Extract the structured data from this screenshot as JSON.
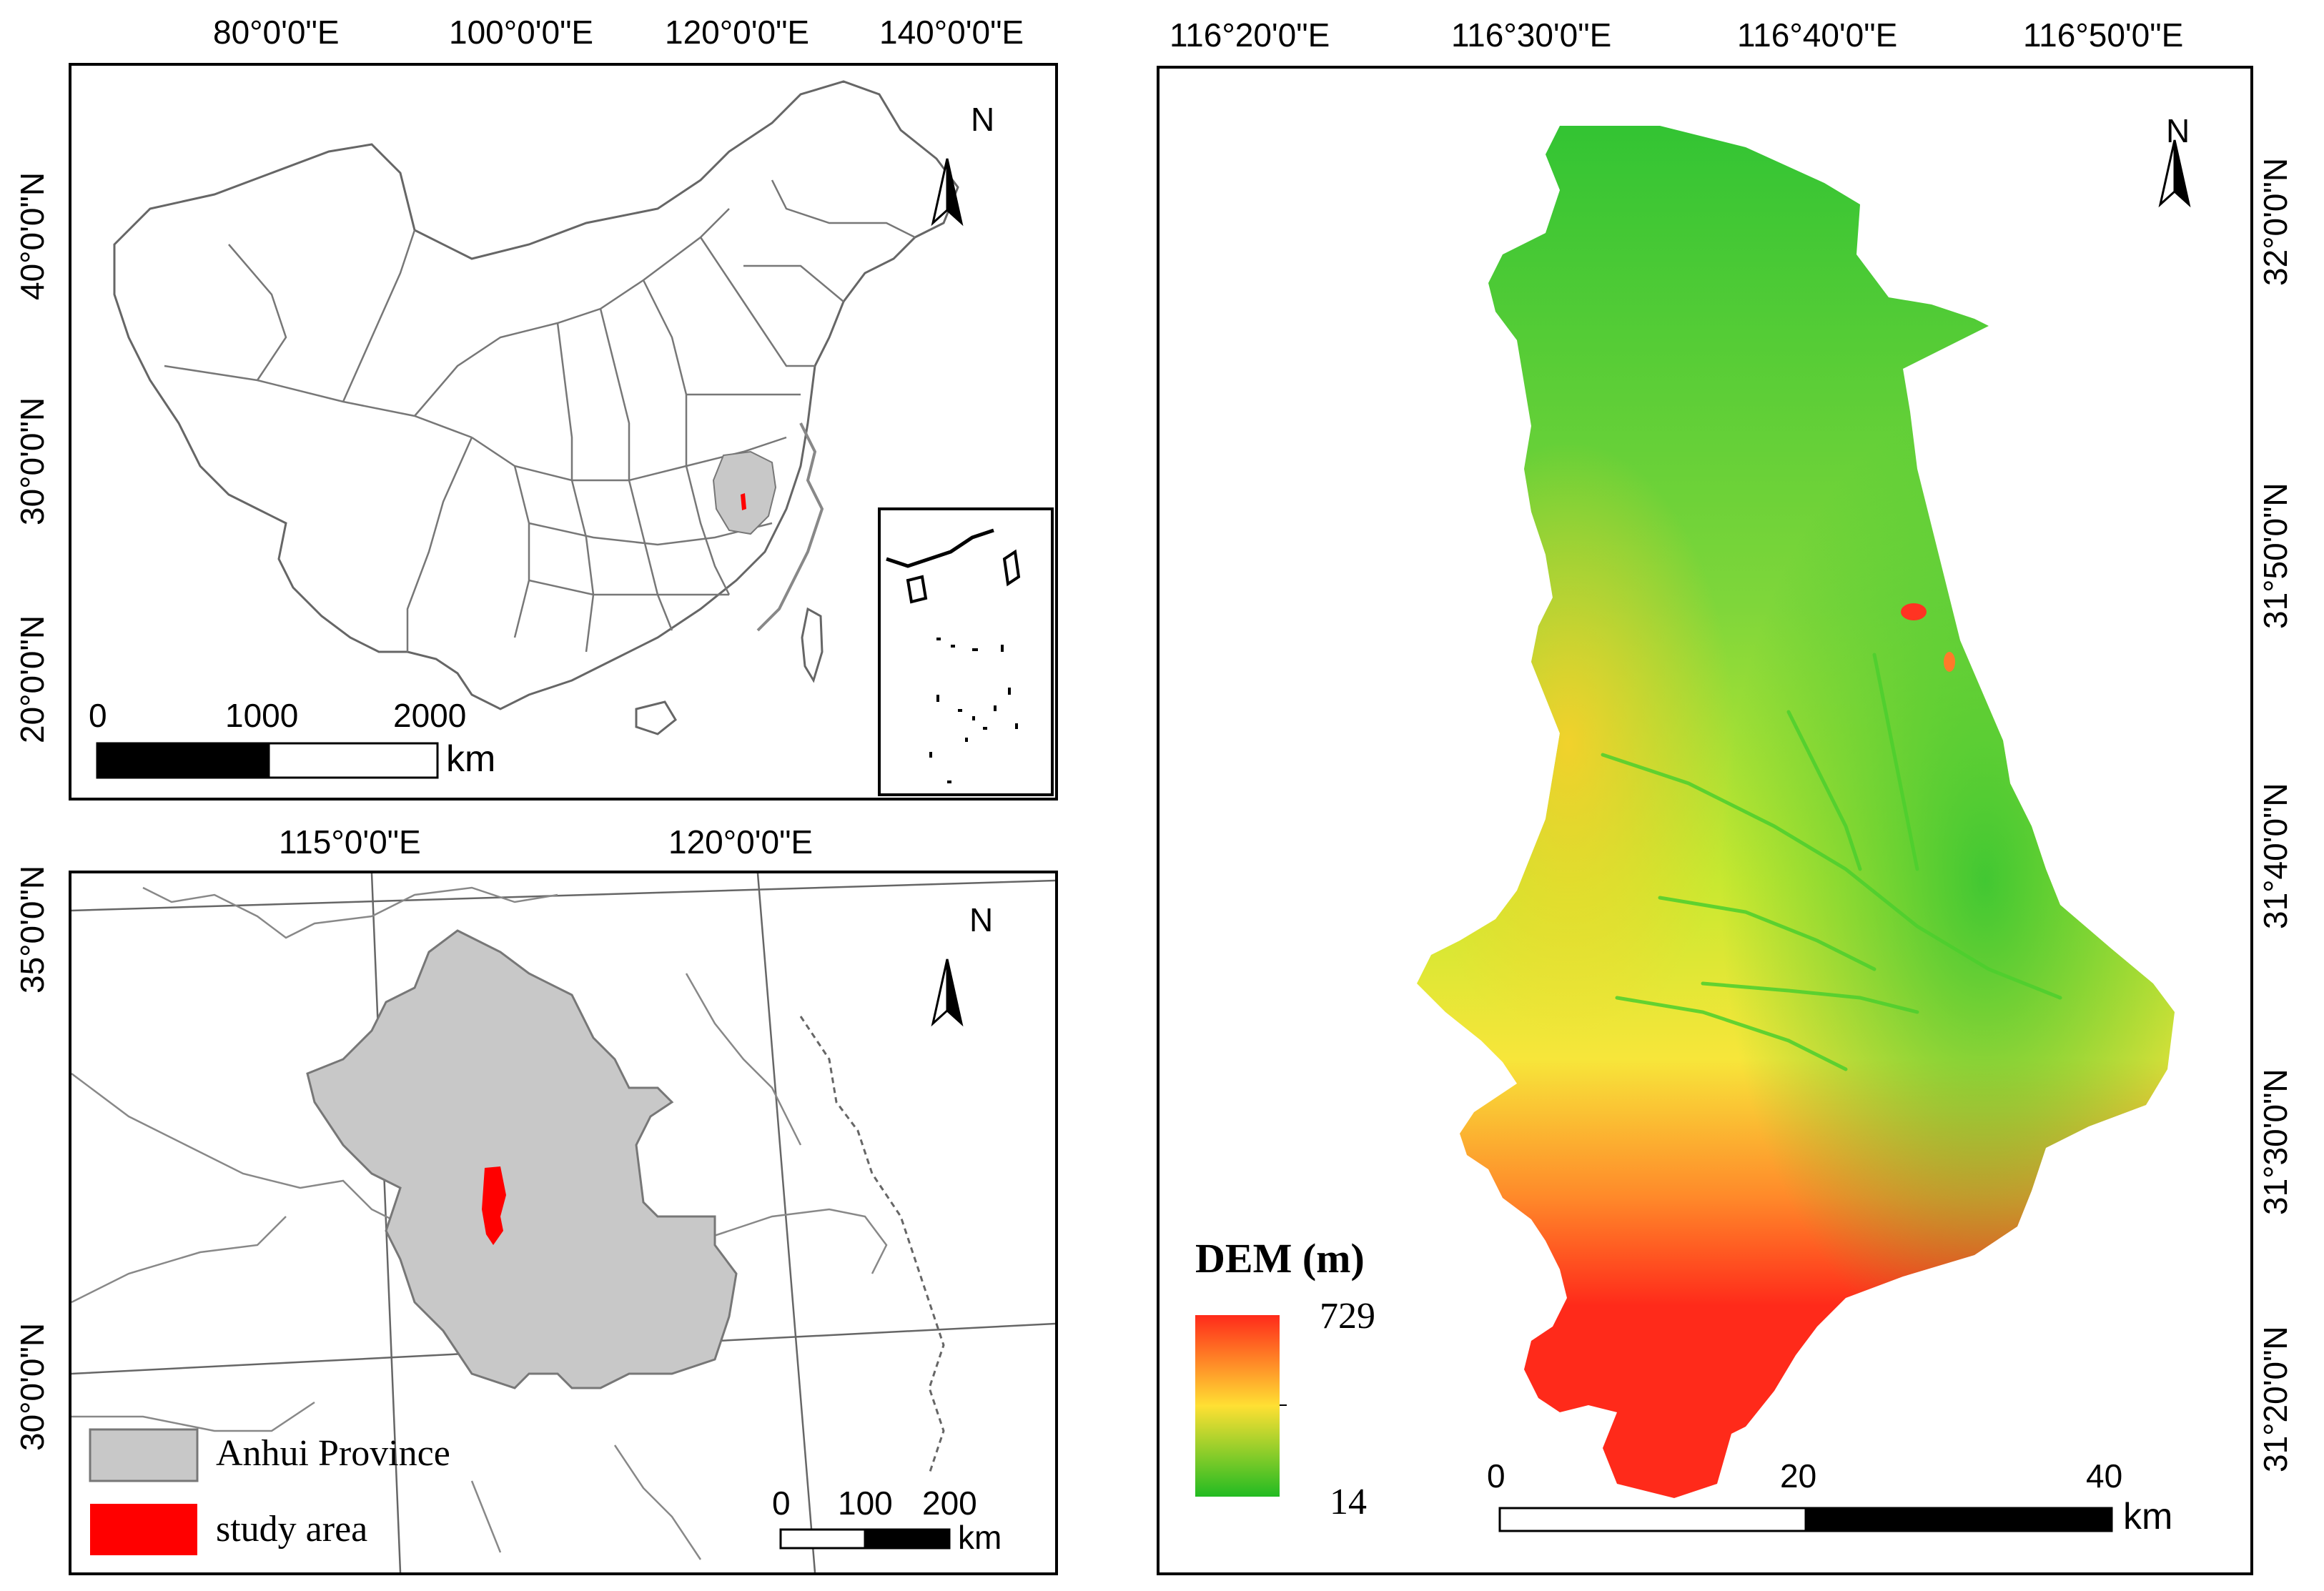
{
  "china_map": {
    "top_labels": [
      "80°0'0\"E",
      "100°0'0\"E",
      "120°0'0\"E",
      "140°0'0\"E"
    ],
    "left_labels": [
      "40°0'0\"N",
      "30°0'0\"N",
      "20°0'0\"N"
    ],
    "north": "N",
    "scale": {
      "ticks": [
        "0",
        "1000",
        "2000"
      ],
      "unit": "km"
    }
  },
  "anhui_map": {
    "top_labels": [
      "115°0'0\"E",
      "120°0'0\"E"
    ],
    "left_labels": [
      "35°0'0\"N",
      "30°0'0\"N"
    ],
    "north": "N",
    "legend": [
      {
        "label": "Anhui Province",
        "color": "#c8c8c8"
      },
      {
        "label": "study area",
        "color": "#ff0000"
      }
    ],
    "scale": {
      "ticks": [
        "0",
        "100",
        "200"
      ],
      "unit": "km"
    }
  },
  "dem_map": {
    "top_labels": [
      "116°20'0\"E",
      "116°30'0\"E",
      "116°40'0\"E",
      "116°50'0\"E"
    ],
    "right_labels": [
      "32°0'0\"N",
      "31°50'0\"N",
      "31°40'0\"N",
      "31°30'0\"N",
      "31°20'0\"N"
    ],
    "north": "N",
    "legend_title": "DEM (m)",
    "legend_max": "729",
    "legend_min": "14",
    "legend_colors": [
      "#ff2a1a",
      "#ffe033",
      "#22bb22"
    ],
    "scale": {
      "ticks": [
        "0",
        "20",
        "40"
      ],
      "unit": "km"
    }
  }
}
